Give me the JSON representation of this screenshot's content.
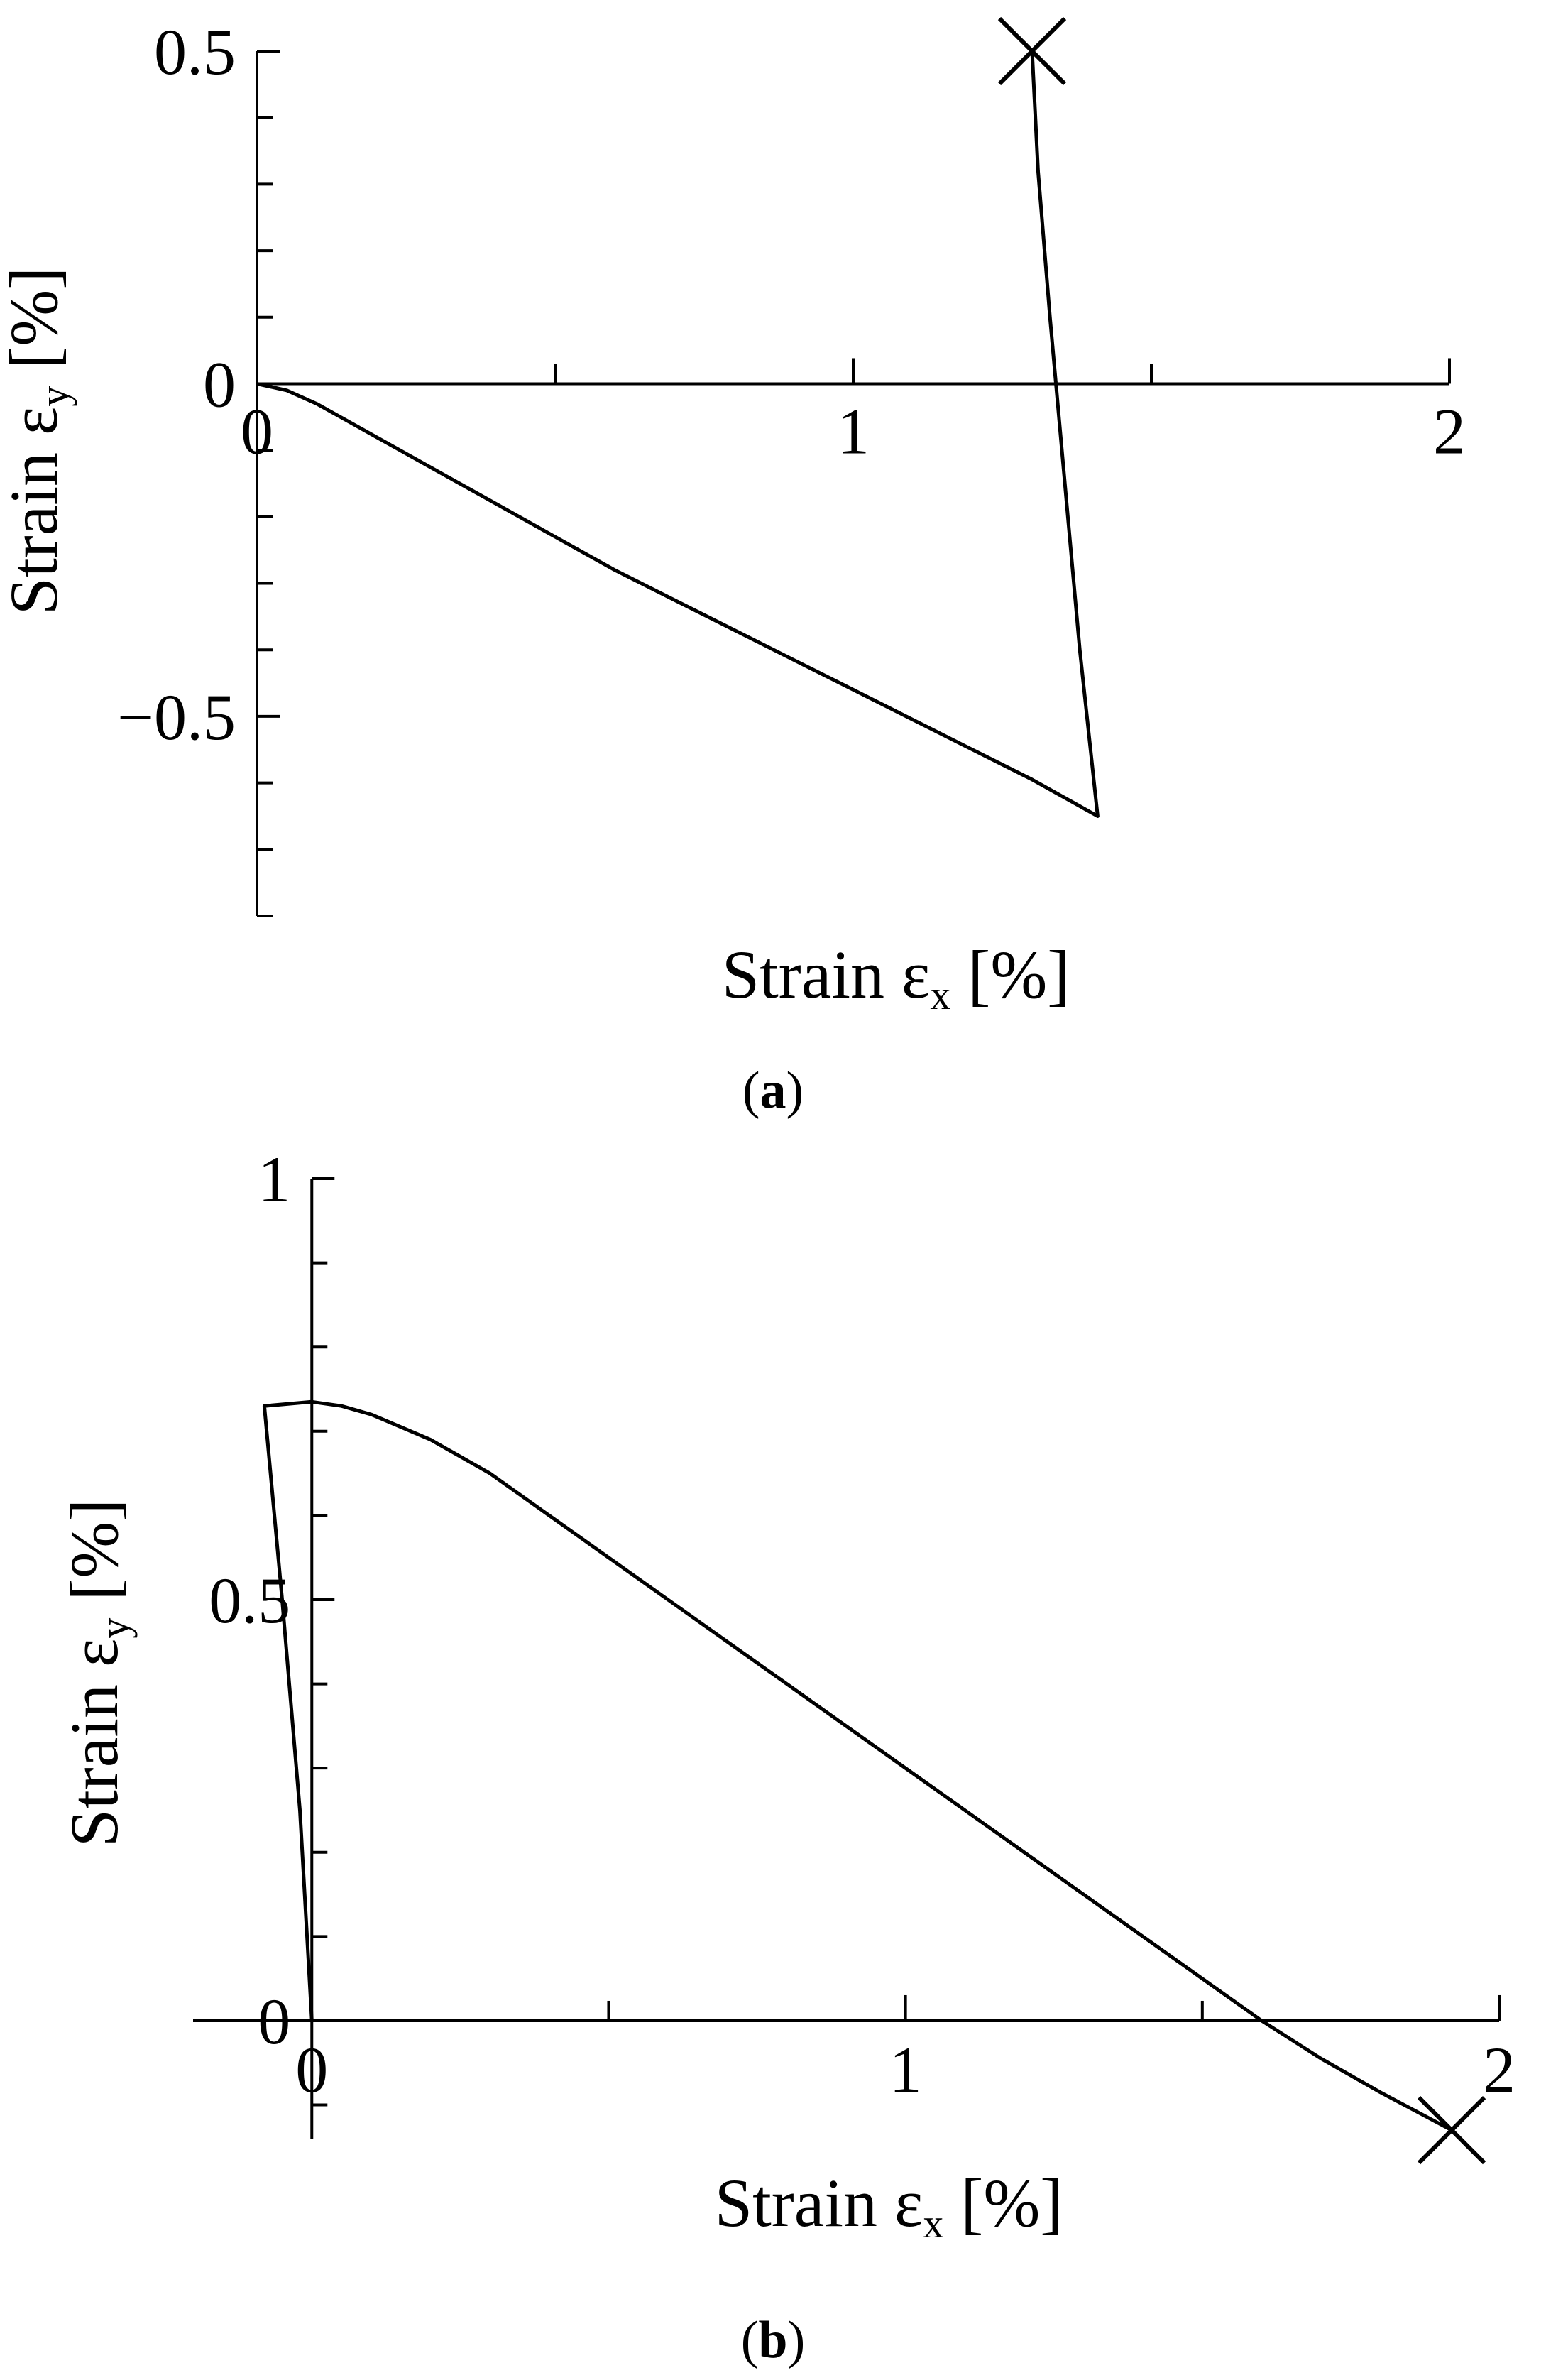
{
  "chart_data": [
    {
      "type": "line",
      "caption": "a",
      "xlabel": "Strain ε",
      "xlabel_sub": "x",
      "xlabel_unit": " [%]",
      "ylabel": "Strain ε",
      "ylabel_sub": "y",
      "ylabel_unit": " [%]",
      "xlim": [
        0,
        2
      ],
      "ylim": [
        -0.8,
        0.5
      ],
      "x_ticks": [
        0,
        1,
        2
      ],
      "x_tick_labels": [
        "0",
        "1",
        "2"
      ],
      "y_ticks": [
        -0.5,
        0,
        0.5
      ],
      "y_tick_labels": [
        "−0.5",
        "0",
        "0.5"
      ],
      "x_minor_step": 0.5,
      "y_minor_step": 0.1,
      "end_marker": "x",
      "series": [
        {
          "x": [
            0,
            0.05,
            0.1,
            0.2,
            0.3,
            0.4,
            0.5,
            0.6,
            0.7,
            0.8,
            0.9,
            1.0,
            1.1,
            1.2,
            1.3,
            1.41,
            1.38,
            1.35,
            1.33,
            1.31,
            1.3
          ],
          "y": [
            0,
            -0.01,
            -0.03,
            -0.08,
            -0.13,
            -0.18,
            -0.23,
            -0.28,
            -0.325,
            -0.37,
            -0.415,
            -0.46,
            -0.505,
            -0.55,
            -0.595,
            -0.65,
            -0.4,
            -0.1,
            0.1,
            0.32,
            0.5
          ]
        }
      ]
    },
    {
      "type": "line",
      "caption": "b",
      "xlabel": "Strain ε",
      "xlabel_sub": "x",
      "xlabel_unit": " [%]",
      "ylabel": "Strain ε",
      "ylabel_sub": "y",
      "ylabel_unit": " [%]",
      "xlim": [
        -0.2,
        2
      ],
      "ylim": [
        -0.14,
        1
      ],
      "x_ticks": [
        0,
        1,
        2
      ],
      "x_tick_labels": [
        "0",
        "1",
        "2"
      ],
      "y_ticks": [
        0,
        0.5,
        1
      ],
      "y_tick_labels": [
        "0",
        "0.5",
        "1"
      ],
      "x_minor_step": 0.5,
      "y_minor_step": 0.1,
      "end_marker": "x",
      "series": [
        {
          "x": [
            0,
            -0.02,
            -0.05,
            -0.08,
            0,
            0.05,
            0.1,
            0.2,
            0.3,
            0.4,
            0.5,
            0.6,
            0.7,
            0.8,
            0.9,
            1.0,
            1.1,
            1.2,
            1.3,
            1.4,
            1.5,
            1.6,
            1.7,
            1.8,
            1.92
          ],
          "y": [
            0,
            0.25,
            0.5,
            0.73,
            0.735,
            0.73,
            0.72,
            0.69,
            0.65,
            0.6,
            0.55,
            0.5,
            0.45,
            0.4,
            0.35,
            0.3,
            0.25,
            0.2,
            0.15,
            0.1,
            0.05,
            0.0,
            -0.045,
            -0.085,
            -0.13
          ]
        }
      ]
    }
  ]
}
